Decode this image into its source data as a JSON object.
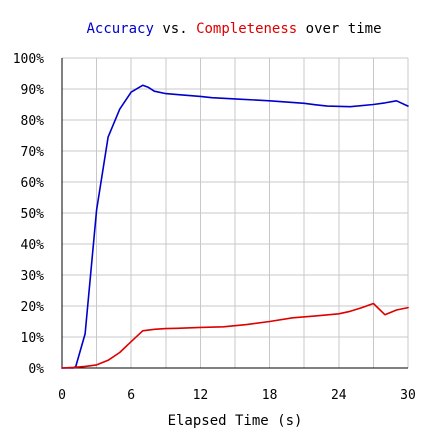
{
  "chart_data": {
    "type": "line",
    "title_parts": [
      {
        "text": "Accuracy",
        "color": "#0000cc"
      },
      {
        "text": " vs. ",
        "color": "#000000"
      },
      {
        "text": "Completeness",
        "color": "#dd0000"
      },
      {
        "text": " over time",
        "color": "#000000"
      }
    ],
    "xlabel": "Elapsed Time (s)",
    "ylabel": "",
    "xlim": [
      0,
      30
    ],
    "ylim": [
      0,
      100
    ],
    "x_ticks": [
      0,
      6,
      12,
      18,
      24,
      30
    ],
    "x_tick_labels": [
      "0",
      "6",
      "12",
      "18",
      "24",
      "30"
    ],
    "y_ticks": [
      0,
      10,
      20,
      30,
      40,
      50,
      60,
      70,
      80,
      90,
      100
    ],
    "y_tick_labels": [
      "0%",
      "10%",
      "20%",
      "30%",
      "40%",
      "50%",
      "60%",
      "70%",
      "80%",
      "90%",
      "100%"
    ],
    "grid": true,
    "series": [
      {
        "color": "#0000cc",
        "points": [
          [
            0,
            0
          ],
          [
            1,
            0
          ],
          [
            1.2,
            0.5
          ],
          [
            2,
            11
          ],
          [
            3,
            51
          ],
          [
            4,
            74.5
          ],
          [
            5,
            83.5
          ],
          [
            6,
            89
          ],
          [
            7,
            91.2
          ],
          [
            7.5,
            90.5
          ],
          [
            8,
            89.3
          ],
          [
            9,
            88.5
          ],
          [
            10,
            88.2
          ],
          [
            12,
            87.6
          ],
          [
            13,
            87.2
          ],
          [
            15,
            86.8
          ],
          [
            18,
            86.2
          ],
          [
            21,
            85.4
          ],
          [
            22,
            84.9
          ],
          [
            23,
            84.5
          ],
          [
            25,
            84.3
          ],
          [
            27,
            85
          ],
          [
            28,
            85.5
          ],
          [
            29,
            86.2
          ],
          [
            30,
            84.5
          ]
        ]
      },
      {
        "color": "#dd0000",
        "points": [
          [
            0,
            0
          ],
          [
            1,
            0.2
          ],
          [
            2,
            0.5
          ],
          [
            3,
            1
          ],
          [
            4,
            2.5
          ],
          [
            5,
            5
          ],
          [
            6,
            8.5
          ],
          [
            7,
            12
          ],
          [
            8,
            12.5
          ],
          [
            9,
            12.7
          ],
          [
            10,
            12.8
          ],
          [
            12,
            13.1
          ],
          [
            14,
            13.3
          ],
          [
            16,
            14
          ],
          [
            18,
            15
          ],
          [
            20,
            16.2
          ],
          [
            22,
            16.8
          ],
          [
            24,
            17.5
          ],
          [
            25,
            18.3
          ],
          [
            26,
            19.5
          ],
          [
            27,
            20.8
          ],
          [
            28,
            17.2
          ],
          [
            29,
            18.7
          ],
          [
            30,
            19.5
          ]
        ]
      }
    ]
  }
}
